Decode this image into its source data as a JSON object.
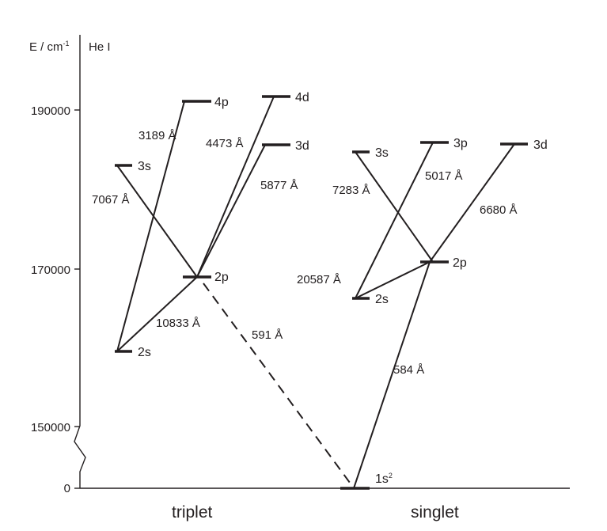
{
  "axis": {
    "ylabel": "E / cm",
    "ylabel_sup": "-1",
    "element": "He I",
    "ticks": [
      "190000",
      "170000",
      "150000",
      "0"
    ]
  },
  "levels": {
    "triplet_2s": "2s",
    "triplet_2p": "2p",
    "triplet_3s": "3s",
    "triplet_3d": "3d",
    "triplet_4p": "4p",
    "triplet_4d": "4d",
    "singlet_1s2": "1s",
    "singlet_1s2_sup": "2",
    "singlet_2s": "2s",
    "singlet_2p": "2p",
    "singlet_3s": "3s",
    "singlet_3p": "3p",
    "singlet_3d": "3d"
  },
  "transitions": {
    "t_10833": "10833 Å",
    "t_7067": "7067 Å",
    "t_3189": "3189 Å",
    "t_4473": "4473 Å",
    "t_5877": "5877 Å",
    "t_591": "591 Å",
    "s_584": "584 Å",
    "s_20587": "20587 Å",
    "s_7283": "7283 Å",
    "s_5017": "5017 Å",
    "s_6680": "6680 Å"
  },
  "groups": {
    "triplet": "triplet",
    "singlet": "singlet"
  }
}
